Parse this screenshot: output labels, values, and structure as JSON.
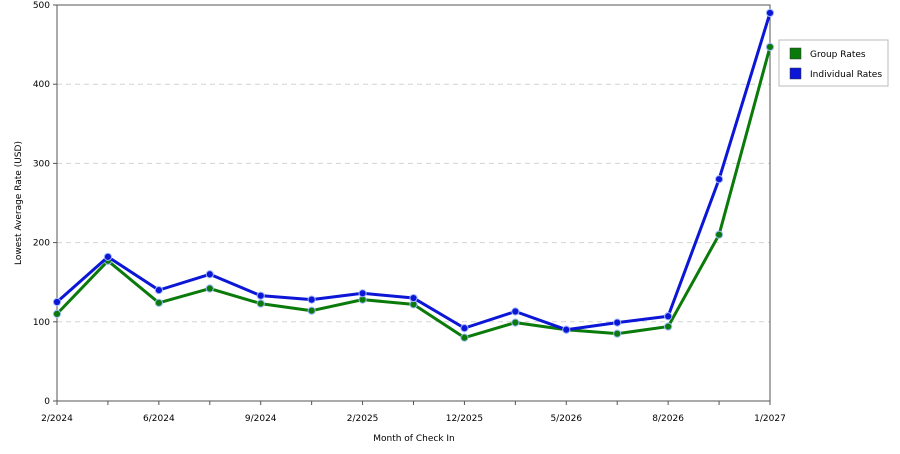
{
  "chart_data": {
    "type": "line",
    "title": "",
    "xlabel": "Month of Check In",
    "ylabel": "Lowest Average Rate (USD)",
    "ylim": [
      0,
      500
    ],
    "yticks": [
      0,
      100,
      200,
      300,
      400,
      500
    ],
    "grid": "horizontal dashed",
    "legend_position": "right",
    "x_tick_labels": [
      "2/2024",
      "6/2024",
      "9/2024",
      "2/2025",
      "12/2025",
      "5/2026",
      "8/2026",
      "1/2027"
    ],
    "x_tick_positions": [
      0,
      2,
      4,
      6,
      8,
      10,
      12,
      14
    ],
    "series": [
      {
        "name": "Group Rates",
        "color": "#0a7a0a",
        "values": [
          110,
          177,
          124,
          142,
          123,
          114,
          128,
          122,
          80,
          99,
          90,
          85,
          94,
          210,
          447
        ]
      },
      {
        "name": "Individual Rates",
        "color": "#0b16d6",
        "values": [
          125,
          182,
          140,
          160,
          133,
          128,
          136,
          130,
          92,
          113,
          90,
          99,
          107,
          280,
          490
        ]
      }
    ]
  }
}
